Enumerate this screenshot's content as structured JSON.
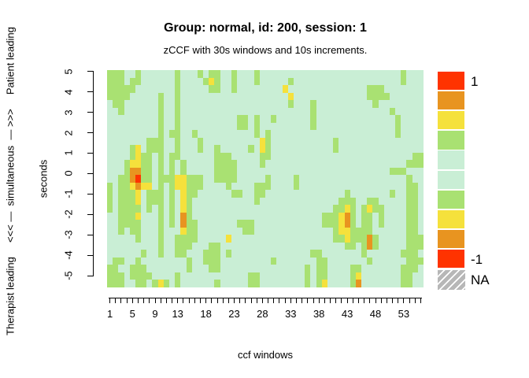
{
  "header": {
    "title": "Group: normal, id: 200, session: 1",
    "subtitle": "zCCF with 30s windows and 10s increments."
  },
  "axes": {
    "x": {
      "label": "ccf windows",
      "tick_labels": [
        "1",
        "5",
        "9",
        "13",
        "18",
        "23",
        "28",
        "33",
        "38",
        "43",
        "48",
        "53"
      ],
      "tick_windows": [
        1,
        5,
        9,
        13,
        18,
        23,
        28,
        33,
        38,
        43,
        48,
        53
      ],
      "n_windows": 56
    },
    "y": {
      "label_outer": "Therapist leading     <<< —  simultaneous  — >>>     Patient leading",
      "label_inner": "seconds",
      "tick_labels": [
        "5",
        "4",
        "3",
        "2",
        "1",
        "0",
        "-1",
        "-2",
        "-3",
        "-4",
        "-5"
      ],
      "tick_values": [
        5,
        4,
        3,
        2,
        1,
        0,
        -1,
        -2,
        -3,
        -4,
        -5
      ]
    }
  },
  "legend": {
    "max_label": "1",
    "min_label": "-1",
    "na_label": "NA",
    "swatch_colors": [
      "#FF3300",
      "#E89420",
      "#F5E13C",
      "#A9E172",
      "#C9EED5",
      "#C9EED5",
      "#A9E172",
      "#F5E13C",
      "#E89420",
      "#FF3300"
    ],
    "na_base_color": "#b7b7b7"
  },
  "chart_data": {
    "type": "heatmap",
    "title": "Group: normal, id: 200, session: 1",
    "subtitle": "zCCF with 30s windows and 10s increments.",
    "xlabel": "ccf windows",
    "ylabel": "seconds",
    "x_range": [
      1,
      56
    ],
    "y_range": [
      -5,
      5
    ],
    "value_range": [
      -1,
      1
    ],
    "x_tick_windows": [
      1,
      5,
      9,
      13,
      18,
      23,
      28,
      33,
      38,
      43,
      48,
      53
    ],
    "y_tick_values": [
      5,
      4,
      3,
      2,
      1,
      0,
      -1,
      -2,
      -3,
      -4,
      -5
    ],
    "legend_top_value": 1,
    "legend_bottom_value": -1,
    "palette": {
      ".": "#C9EED5",
      "g": "#A9E172",
      "y": "#F5E13C",
      "o": "#E89420",
      "r": "#FF3300"
    },
    "palette_meaning": {
      ".": "near-zero zCCF (pale mint)",
      "g": "weak correlation (light green)",
      "y": "moderate correlation (yellow)",
      "o": "strong correlation (orange)",
      "r": "strongest correlation (red)"
    },
    "grid_rows_top_to_bottom": [
      "ggg..g......g...g.gg..g...g.........................g...",
      "ggg.gg......g....gyg..g...g.....g...................g...",
      "ggggg.......g.....gg..g........y..............ggg......",
      "gggg.....g..g...................y.............gggg......",
      ".gg......g..g...................g...g..........g........",
      "..g......g..g.......................g.............g.....",
      ".........g..g..........gg.g..g......g..............g....",
      ".........g..g..........gg.g.........g..............g....",
      ".........g.gg..g..........g.g......................g....",
      ".......ggg..g...g..........yg...........g...............",
      "....gy.ggg..g...g..g.....g.yg...........g...............",
      "....gygg.g.gg......ggg.....gg.........................gg",
      "...gyygg.g.g.g.....gggg....g.........................ggg",
      "...googg.g.g.g.....gggg...........................ggg",
      "..ggorgg.gggyyggg..gggg.....g....g...................g..",
      "g.ggyoyy.g.gyyggg....g....ggg....g...................gg.",
      "g.gggy.ggg.g.ygg......gg..gg..............g.......g..gg.",
      "g.gggy.ggg.g.yg...........g..............ggg..gg.....gg.",
      "g.gggg.g.g.g.yg.........................ggyg.gygg....gg.",
      "..gggy...g.g.og.......................gggyog.gg.g....gg.",
      "..gggg...g.g.ogg.......ggg............gggyog.gg.g....gg.",
      "..g.gg...g...ygg........gg..............gyygggg......gg.",
      ".....g...g..gggg.....y..................ggygggog.....ggg",
      ".........g..ggg...gg......................gg.gog.....ggg",
      "......g..g..gg...ggg.g..............gg.......g......ggg",
      ".gg..g........g..ggg.........g.......gg.......g......ggg",
      "gg..ggg.......g...gg...............g.gg....gg.......ggg.",
      "ggg.gggg....g............gg........g.gg....gy.......gg..",
      "ggg..gg.gyg.g......g.....gg........g.gy....go.......gg.."
    ]
  }
}
